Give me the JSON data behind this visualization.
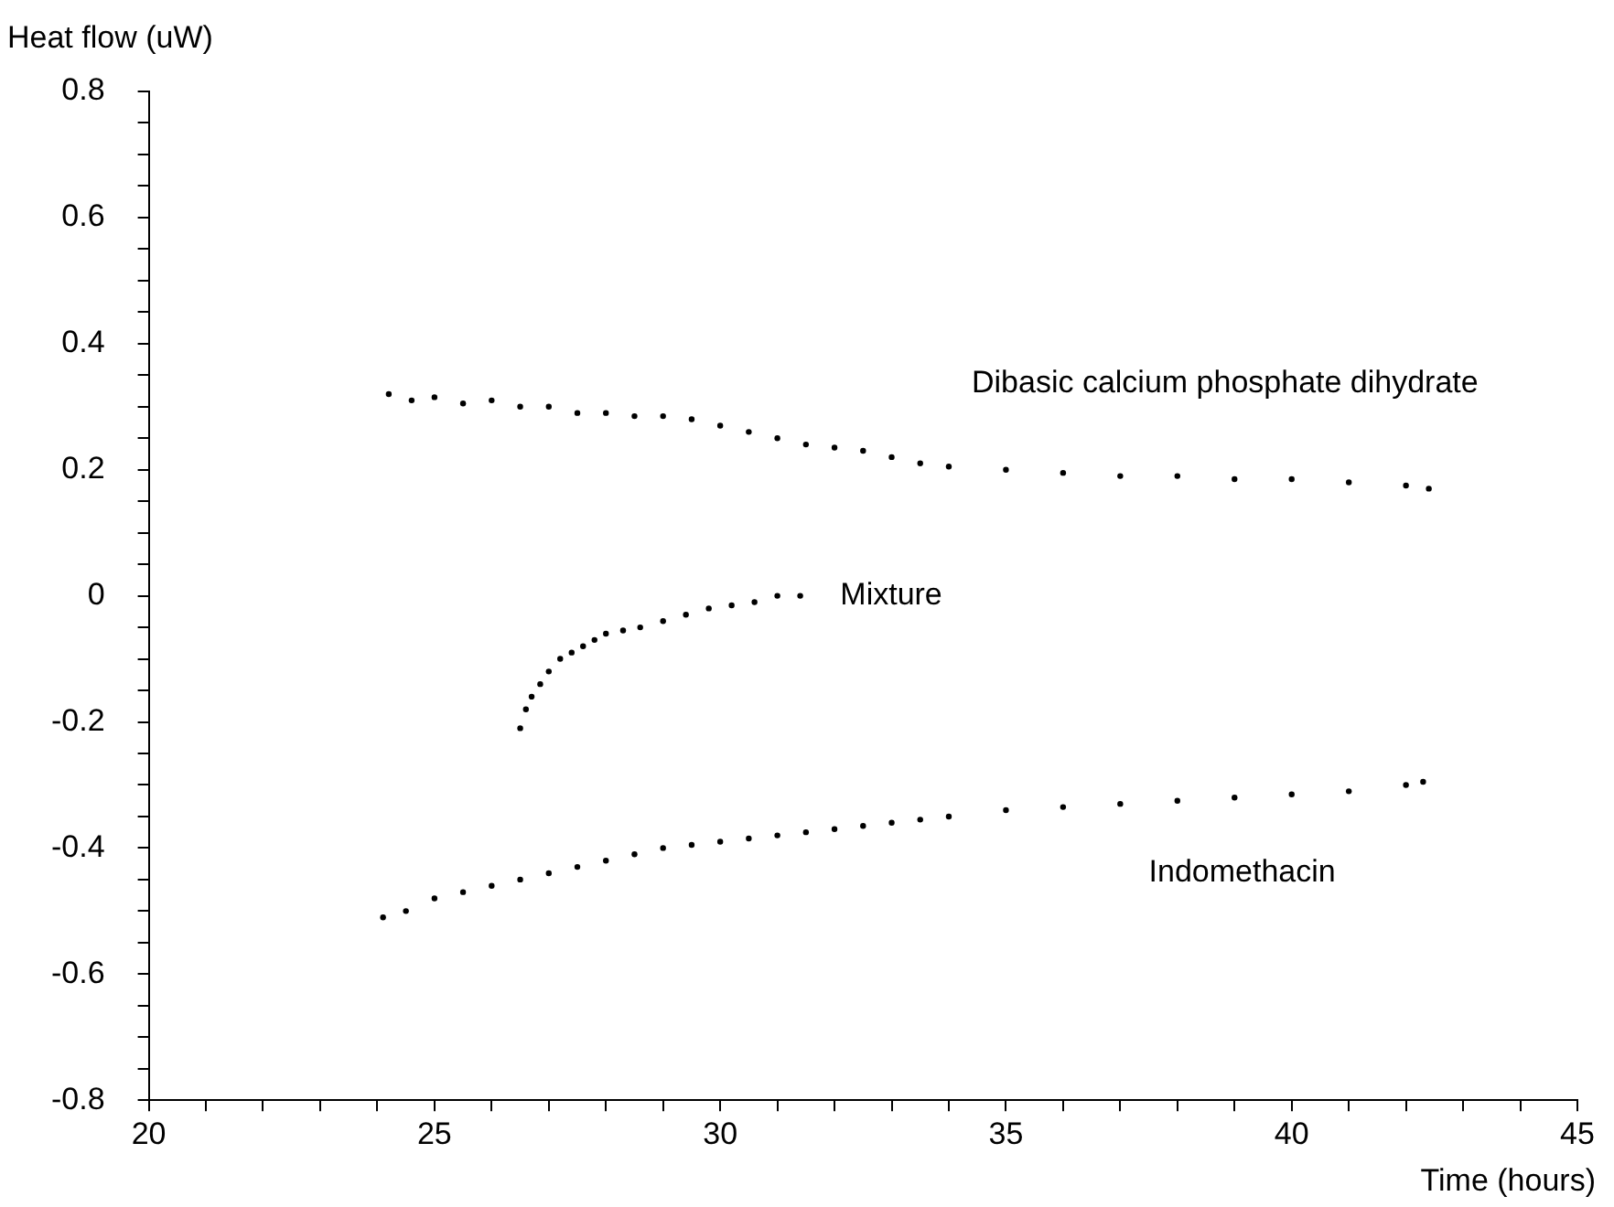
{
  "chart_data": {
    "type": "scatter",
    "ylabel": "Heat flow (uW)",
    "xlabel": "Time (hours)",
    "xlim": [
      20,
      45
    ],
    "ylim": [
      -0.8,
      0.8
    ],
    "xticks": [
      20,
      {
        "value": 21,
        "label": null
      },
      {
        "value": 22,
        "label": null
      },
      {
        "value": 23,
        "label": null
      },
      {
        "value": 24,
        "label": null
      },
      25,
      {
        "value": 26,
        "label": null
      },
      {
        "value": 27,
        "label": null
      },
      {
        "value": 28,
        "label": null
      },
      {
        "value": 29,
        "label": null
      },
      30,
      {
        "value": 31,
        "label": null
      },
      {
        "value": 32,
        "label": null
      },
      {
        "value": 33,
        "label": null
      },
      {
        "value": 34,
        "label": null
      },
      35,
      {
        "value": 36,
        "label": null
      },
      {
        "value": 37,
        "label": null
      },
      {
        "value": 38,
        "label": null
      },
      {
        "value": 39,
        "label": null
      },
      40,
      {
        "value": 41,
        "label": null
      },
      {
        "value": 42,
        "label": null
      },
      {
        "value": 43,
        "label": null
      },
      {
        "value": 44,
        "label": null
      },
      45
    ],
    "yticks": [
      -0.8,
      {
        "value": -0.75,
        "label": null
      },
      {
        "value": -0.7,
        "label": null
      },
      {
        "value": -0.65,
        "label": null
      },
      -0.6,
      {
        "value": -0.55,
        "label": null
      },
      {
        "value": -0.5,
        "label": null
      },
      {
        "value": -0.45,
        "label": null
      },
      -0.4,
      {
        "value": -0.35,
        "label": null
      },
      {
        "value": -0.3,
        "label": null
      },
      {
        "value": -0.25,
        "label": null
      },
      -0.2,
      {
        "value": -0.15,
        "label": null
      },
      {
        "value": -0.1,
        "label": null
      },
      {
        "value": -0.05,
        "label": null
      },
      0,
      {
        "value": 0.05,
        "label": null
      },
      {
        "value": 0.1,
        "label": null
      },
      {
        "value": 0.15,
        "label": null
      },
      0.2,
      {
        "value": 0.25,
        "label": null
      },
      {
        "value": 0.3,
        "label": null
      },
      {
        "value": 0.35,
        "label": null
      },
      0.4,
      {
        "value": 0.45,
        "label": null
      },
      {
        "value": 0.5,
        "label": null
      },
      {
        "value": 0.55,
        "label": null
      },
      0.6,
      {
        "value": 0.65,
        "label": null
      },
      {
        "value": 0.7,
        "label": null
      },
      {
        "value": 0.75,
        "label": null
      },
      0.8
    ],
    "grid": false,
    "legend": false,
    "marker": "circle",
    "series": [
      {
        "name": "Dibasic calcium phosphate dihydrate",
        "color": "#000000",
        "x": [
          24.2,
          24.6,
          25,
          25.5,
          26,
          26.5,
          27,
          27.5,
          28,
          28.5,
          29,
          29.5,
          30,
          30.5,
          31,
          31.5,
          32,
          32.5,
          33,
          33.5,
          34,
          35,
          36,
          37,
          38,
          39,
          40,
          41,
          42,
          42.4
        ],
        "values": [
          0.32,
          0.31,
          0.315,
          0.305,
          0.31,
          0.3,
          0.3,
          0.29,
          0.29,
          0.285,
          0.285,
          0.28,
          0.27,
          0.26,
          0.25,
          0.24,
          0.235,
          0.23,
          0.22,
          0.21,
          0.205,
          0.2,
          0.195,
          0.19,
          0.19,
          0.185,
          0.185,
          0.18,
          0.175,
          0.17
        ]
      },
      {
        "name": "Mixture",
        "color": "#000000",
        "x": [
          26.5,
          26.6,
          26.7,
          26.85,
          27,
          27.2,
          27.4,
          27.6,
          27.8,
          28,
          28.3,
          28.6,
          29,
          29.4,
          29.8,
          30.2,
          30.6,
          31,
          31.4
        ],
        "values": [
          -0.21,
          -0.18,
          -0.16,
          -0.14,
          -0.12,
          -0.1,
          -0.09,
          -0.08,
          -0.07,
          -0.06,
          -0.055,
          -0.05,
          -0.04,
          -0.03,
          -0.02,
          -0.015,
          -0.01,
          0,
          0
        ]
      },
      {
        "name": "Indomethacin",
        "color": "#000000",
        "x": [
          24.1,
          24.5,
          25,
          25.5,
          26,
          26.5,
          27,
          27.5,
          28,
          28.5,
          29,
          29.5,
          30,
          30.5,
          31,
          31.5,
          32,
          32.5,
          33,
          33.5,
          34,
          35,
          36,
          37,
          38,
          39,
          40,
          41,
          42,
          42.3
        ],
        "values": [
          -0.51,
          -0.5,
          -0.48,
          -0.47,
          -0.46,
          -0.45,
          -0.44,
          -0.43,
          -0.42,
          -0.41,
          -0.4,
          -0.395,
          -0.39,
          -0.385,
          -0.38,
          -0.375,
          -0.37,
          -0.365,
          -0.36,
          -0.355,
          -0.35,
          -0.34,
          -0.335,
          -0.33,
          -0.325,
          -0.32,
          -0.315,
          -0.31,
          -0.3,
          -0.295
        ]
      }
    ]
  }
}
